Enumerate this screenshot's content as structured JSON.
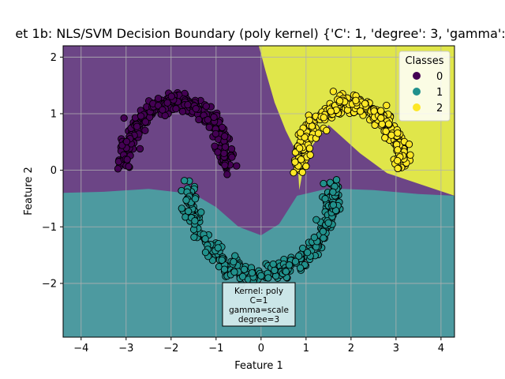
{
  "chart_data": {
    "type": "scatter",
    "title": "et 1b: NLS/SVM Decision Boundary (poly kernel) {'C': 1, 'degree': 3, 'gamma':",
    "xlabel": "Feature 1",
    "ylabel": "Feature 2",
    "xlim": [
      -4.4,
      4.3
    ],
    "ylim": [
      -2.95,
      2.2
    ],
    "xticks": [
      -4,
      -3,
      -2,
      -1,
      0,
      1,
      2,
      3,
      4
    ],
    "yticks": [
      -2,
      -1,
      0,
      1,
      2
    ],
    "xtick_labels": [
      "−4",
      "−3",
      "−2",
      "−1",
      "0",
      "1",
      "2",
      "3",
      "4"
    ],
    "ytick_labels": [
      "−2",
      "−1",
      "0",
      "1",
      "2"
    ],
    "grid": true,
    "legend": {
      "title": "Classes",
      "position": "top-right",
      "entries": [
        "0",
        "1",
        "2"
      ]
    },
    "colors": {
      "class0": "#440154",
      "class1": "#21918c",
      "class2": "#fde725",
      "region0": "#6c4586",
      "region1": "#4d9aa0",
      "region2": "#e0e64a"
    },
    "series": [
      {
        "name": "0",
        "shape": "upper moon",
        "center": [
          -1.9,
          0.05
        ],
        "radius": 1.15,
        "angle_range_deg": [
          0,
          180
        ],
        "approx_points": 330
      },
      {
        "name": "1",
        "shape": "lower moon",
        "center": [
          0.0,
          -0.25
        ],
        "radius": 1.6,
        "angle_range_deg": [
          180,
          360
        ],
        "approx_points": 330
      },
      {
        "name": "2",
        "shape": "upper moon",
        "center": [
          2.0,
          0.0
        ],
        "radius": 1.15,
        "angle_range_deg": [
          0,
          180
        ],
        "approx_points": 330
      }
    ],
    "decision_regions": {
      "boundary_1_lower": [
        [
          -4.4,
          -0.4
        ],
        [
          -3.5,
          -0.38
        ],
        [
          -2.5,
          -0.33
        ],
        [
          -1.5,
          -0.42
        ],
        [
          -1.0,
          -0.65
        ],
        [
          -0.5,
          -1.0
        ],
        [
          0.0,
          -1.15
        ],
        [
          0.4,
          -0.95
        ],
        [
          0.8,
          -0.45
        ],
        [
          1.5,
          -0.32
        ],
        [
          2.5,
          -0.35
        ],
        [
          3.5,
          -0.42
        ],
        [
          4.3,
          -0.45
        ]
      ],
      "boundary_0_2": [
        [
          -0.05,
          2.2
        ],
        [
          0.1,
          1.75
        ],
        [
          0.3,
          1.2
        ],
        [
          0.55,
          0.7
        ],
        [
          0.8,
          0.3
        ],
        [
          0.85,
          -0.35
        ]
      ],
      "boundary_2_upper": [
        [
          0.85,
          -0.35
        ],
        [
          1.0,
          0.3
        ],
        [
          1.5,
          0.8
        ],
        [
          2.2,
          0.3
        ],
        [
          2.8,
          -0.05
        ],
        [
          4.3,
          -0.45
        ]
      ]
    },
    "annotation": [
      "Kernel: poly",
      "C=1",
      "gamma=scale",
      "degree=3"
    ]
  }
}
